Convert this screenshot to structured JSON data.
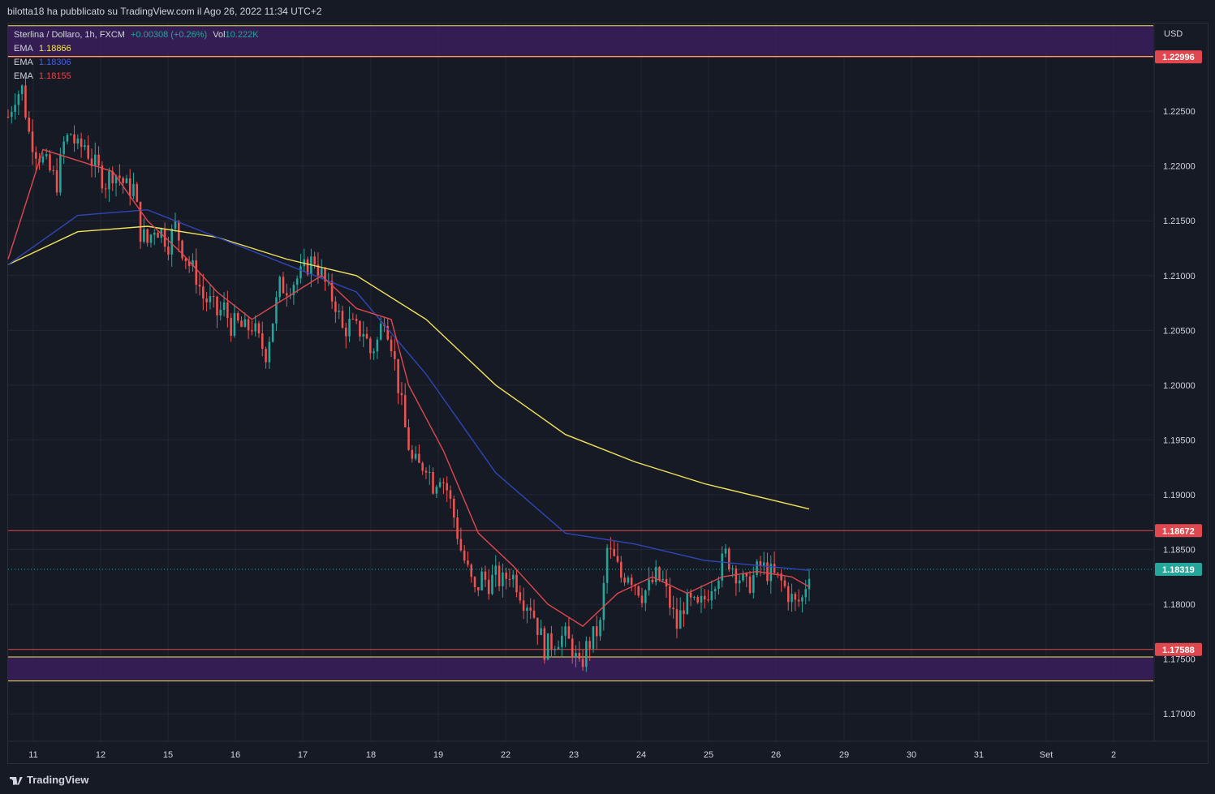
{
  "header": {
    "publisher": "bilotta18 ha pubblicato su TradingView.com il Ago 26, 2022 11:34 UTC+2"
  },
  "symbol": {
    "name": "Sterlina / Dollaro, 1h, FXCM",
    "change": "+0.00308 (+0.26%)",
    "vol_label": "Vol",
    "vol_value": "10.222K"
  },
  "indicators": [
    {
      "label": "EMA",
      "value": "1.18866",
      "color": "#f2e35a"
    },
    {
      "label": "EMA",
      "value": "1.18306",
      "color": "#3d50c8"
    },
    {
      "label": "EMA",
      "value": "1.18155",
      "color": "#e0484f"
    }
  ],
  "footer": {
    "brand": "TradingView"
  },
  "colors": {
    "bull": "#26a69a",
    "bear": "#ef5350",
    "zone": "#3a1f5a",
    "zone_line": "#f2e35a",
    "level_line": "#e0484f"
  },
  "chart_data": {
    "type": "candlestick",
    "currency": "USD",
    "ylim": [
      1.1675,
      1.233
    ],
    "y_ticks": [
      "1.22500",
      "1.22000",
      "1.21500",
      "1.21000",
      "1.20500",
      "1.20000",
      "1.19500",
      "1.19000",
      "1.18500",
      "1.18000",
      "1.17500",
      "1.17000"
    ],
    "x_ticks": [
      "11",
      "12",
      "15",
      "16",
      "17",
      "18",
      "19",
      "22",
      "23",
      "24",
      "25",
      "26",
      "29",
      "30",
      "31",
      "Set",
      "2"
    ],
    "price_labels": [
      {
        "value": 1.22996,
        "text": "1.22996",
        "color": "#e0484f"
      },
      {
        "value": 1.18672,
        "text": "1.18672",
        "color": "#e0484f"
      },
      {
        "value": 1.18319,
        "text": "1.18319",
        "color": "#26a69a"
      },
      {
        "value": 1.17588,
        "text": "1.17588",
        "color": "#e0484f"
      }
    ],
    "zones": [
      {
        "from": 1.23,
        "to": 1.2328
      },
      {
        "from": 1.173,
        "to": 1.1752
      }
    ],
    "levels": [
      1.22996,
      1.18672,
      1.17588
    ],
    "last_price": 1.18319,
    "ohlc_path": [
      [
        0,
        1.2245
      ],
      [
        2,
        1.2265
      ],
      [
        4,
        1.227
      ],
      [
        6,
        1.223
      ],
      [
        8,
        1.2215
      ],
      [
        10,
        1.2205
      ],
      [
        12,
        1.2195
      ],
      [
        14,
        1.2185
      ],
      [
        16,
        1.222
      ],
      [
        18,
        1.223
      ],
      [
        20,
        1.2215
      ],
      [
        22,
        1.222
      ],
      [
        24,
        1.2205
      ],
      [
        26,
        1.2195
      ],
      [
        28,
        1.2185
      ],
      [
        30,
        1.2195
      ],
      [
        32,
        1.219
      ],
      [
        34,
        1.218
      ],
      [
        36,
        1.218
      ],
      [
        38,
        1.214
      ],
      [
        40,
        1.213
      ],
      [
        42,
        1.2145
      ],
      [
        44,
        1.214
      ],
      [
        46,
        1.213
      ],
      [
        48,
        1.2145
      ],
      [
        50,
        1.2125
      ],
      [
        52,
        1.211
      ],
      [
        54,
        1.21
      ],
      [
        56,
        1.208
      ],
      [
        58,
        1.2075
      ],
      [
        60,
        1.2065
      ],
      [
        62,
        1.207
      ],
      [
        64,
        1.2055
      ],
      [
        66,
        1.2055
      ],
      [
        68,
        1.205
      ],
      [
        70,
        1.2055
      ],
      [
        72,
        1.204
      ],
      [
        74,
        1.203
      ],
      [
        76,
        1.206
      ],
      [
        78,
        1.209
      ],
      [
        80,
        1.209
      ],
      [
        82,
        1.2095
      ],
      [
        84,
        1.21
      ],
      [
        86,
        1.211
      ],
      [
        88,
        1.2115
      ],
      [
        90,
        1.21
      ],
      [
        92,
        1.2085
      ],
      [
        94,
        1.2075
      ],
      [
        96,
        1.205
      ],
      [
        98,
        1.2055
      ],
      [
        100,
        1.205
      ],
      [
        102,
        1.205
      ],
      [
        104,
        1.203
      ],
      [
        106,
        1.204
      ],
      [
        108,
        1.2065
      ],
      [
        110,
        1.204
      ],
      [
        112,
        1.2
      ],
      [
        114,
        1.196
      ],
      [
        116,
        1.193
      ],
      [
        118,
        1.1925
      ],
      [
        120,
        1.193
      ],
      [
        122,
        1.191
      ],
      [
        124,
        1.192
      ],
      [
        126,
        1.1905
      ],
      [
        128,
        1.188
      ],
      [
        130,
        1.185
      ],
      [
        132,
        1.183
      ],
      [
        134,
        1.181
      ],
      [
        136,
        1.1825
      ],
      [
        138,
        1.182
      ],
      [
        140,
        1.1825
      ],
      [
        142,
        1.182
      ],
      [
        144,
        1.183
      ],
      [
        146,
        1.182
      ],
      [
        148,
        1.1805
      ],
      [
        150,
        1.18
      ],
      [
        152,
        1.178
      ],
      [
        154,
        1.176
      ],
      [
        156,
        1.1765
      ],
      [
        158,
        1.177
      ],
      [
        160,
        1.177
      ],
      [
        162,
        1.176
      ],
      [
        164,
        1.174
      ],
      [
        166,
        1.176
      ],
      [
        168,
        1.177
      ],
      [
        170,
        1.178
      ],
      [
        172,
        1.185
      ],
      [
        174,
        1.184
      ],
      [
        176,
        1.1825
      ],
      [
        178,
        1.183
      ],
      [
        180,
        1.182
      ],
      [
        182,
        1.181
      ],
      [
        184,
        1.1815
      ],
      [
        186,
        1.1825
      ],
      [
        188,
        1.182
      ],
      [
        190,
        1.18
      ],
      [
        192,
        1.178
      ],
      [
        194,
        1.18
      ],
      [
        196,
        1.18
      ],
      [
        198,
        1.1795
      ],
      [
        200,
        1.1805
      ],
      [
        202,
        1.182
      ],
      [
        204,
        1.183
      ],
      [
        206,
        1.1845
      ],
      [
        208,
        1.1835
      ],
      [
        210,
        1.1825
      ],
      [
        212,
        1.1815
      ],
      [
        214,
        1.1825
      ],
      [
        216,
        1.1835
      ],
      [
        218,
        1.183
      ],
      [
        220,
        1.1825
      ],
      [
        222,
        1.182
      ],
      [
        224,
        1.181
      ],
      [
        226,
        1.18
      ],
      [
        228,
        1.1805
      ],
      [
        230,
        1.1832
      ]
    ],
    "ema_200": [
      [
        0,
        1.211
      ],
      [
        20,
        1.214
      ],
      [
        40,
        1.2145
      ],
      [
        60,
        1.2135
      ],
      [
        80,
        1.2115
      ],
      [
        100,
        1.21
      ],
      [
        120,
        1.206
      ],
      [
        140,
        1.2
      ],
      [
        160,
        1.1955
      ],
      [
        180,
        1.193
      ],
      [
        200,
        1.191
      ],
      [
        230,
        1.1887
      ]
    ],
    "ema_100": [
      [
        0,
        1.211
      ],
      [
        20,
        1.2155
      ],
      [
        40,
        1.216
      ],
      [
        60,
        1.2135
      ],
      [
        80,
        1.211
      ],
      [
        100,
        1.2085
      ],
      [
        120,
        1.201
      ],
      [
        140,
        1.192
      ],
      [
        160,
        1.1865
      ],
      [
        180,
        1.1855
      ],
      [
        200,
        1.184
      ],
      [
        230,
        1.1831
      ]
    ],
    "ema_20": [
      [
        0,
        1.2115
      ],
      [
        10,
        1.2215
      ],
      [
        20,
        1.2205
      ],
      [
        30,
        1.2195
      ],
      [
        40,
        1.215
      ],
      [
        50,
        1.212
      ],
      [
        60,
        1.2085
      ],
      [
        70,
        1.206
      ],
      [
        80,
        1.208
      ],
      [
        90,
        1.21
      ],
      [
        100,
        1.207
      ],
      [
        110,
        1.206
      ],
      [
        115,
        1.2
      ],
      [
        125,
        1.194
      ],
      [
        135,
        1.1865
      ],
      [
        145,
        1.1835
      ],
      [
        155,
        1.18
      ],
      [
        165,
        1.178
      ],
      [
        175,
        1.181
      ],
      [
        185,
        1.1825
      ],
      [
        195,
        1.181
      ],
      [
        205,
        1.1825
      ],
      [
        215,
        1.183
      ],
      [
        225,
        1.1825
      ],
      [
        230,
        1.1816
      ]
    ]
  }
}
